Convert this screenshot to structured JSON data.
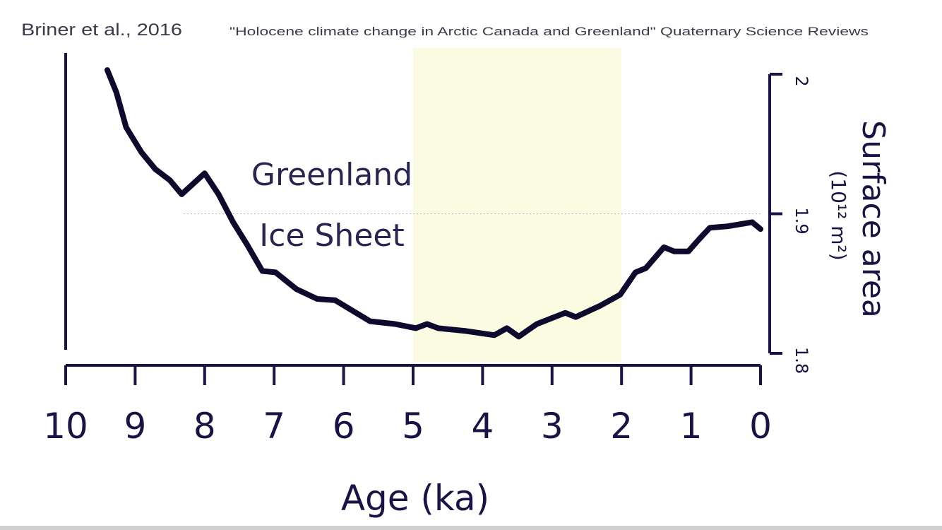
{
  "header": {
    "citation": "Briner et al., 2016",
    "source": "\"Holocene climate change in Arctic Canada and Greenland\" Quaternary Science Reviews"
  },
  "chart_data": {
    "type": "line",
    "title": "",
    "annotation": [
      "Greenland",
      "Ice Sheet"
    ],
    "xlabel": "Age (ka)",
    "ylabel": "Surface area",
    "yunit": "(10¹² m²)",
    "xlim": [
      10,
      0
    ],
    "ylim": [
      1.8,
      2.0
    ],
    "x_reversed": true,
    "xticks": [
      10,
      9,
      8,
      7,
      6,
      5,
      4,
      3,
      2,
      1,
      0
    ],
    "yticks": [
      "2",
      "1.9",
      "1.8"
    ],
    "yaxis_side": "right",
    "reference_line": 1.9,
    "shaded_region": {
      "x": [
        5,
        2
      ],
      "color": "#fafbe0"
    },
    "line_color": "#0d0a2e",
    "axis_color": "#1a1446",
    "x": [
      9.4,
      9.27,
      9.13,
      8.91,
      8.71,
      8.5,
      8.33,
      8.0,
      7.8,
      7.59,
      7.39,
      7.17,
      6.98,
      6.68,
      6.38,
      6.12,
      5.92,
      5.62,
      5.26,
      4.96,
      4.8,
      4.64,
      4.24,
      3.83,
      3.65,
      3.48,
      3.22,
      2.81,
      2.66,
      2.31,
      2.02,
      1.8,
      1.65,
      1.39,
      1.24,
      1.04,
      0.88,
      0.73,
      0.48,
      0.12,
      0.0
    ],
    "y": [
      2.003,
      1.987,
      1.962,
      1.944,
      1.932,
      1.924,
      1.914,
      1.929,
      1.914,
      1.894,
      1.878,
      1.859,
      1.858,
      1.846,
      1.839,
      1.838,
      1.832,
      1.823,
      1.821,
      1.818,
      1.821,
      1.818,
      1.816,
      1.813,
      1.818,
      1.812,
      1.821,
      1.829,
      1.826,
      1.834,
      1.842,
      1.858,
      1.861,
      1.876,
      1.873,
      1.873,
      1.882,
      1.89,
      1.891,
      1.894,
      1.889
    ]
  }
}
